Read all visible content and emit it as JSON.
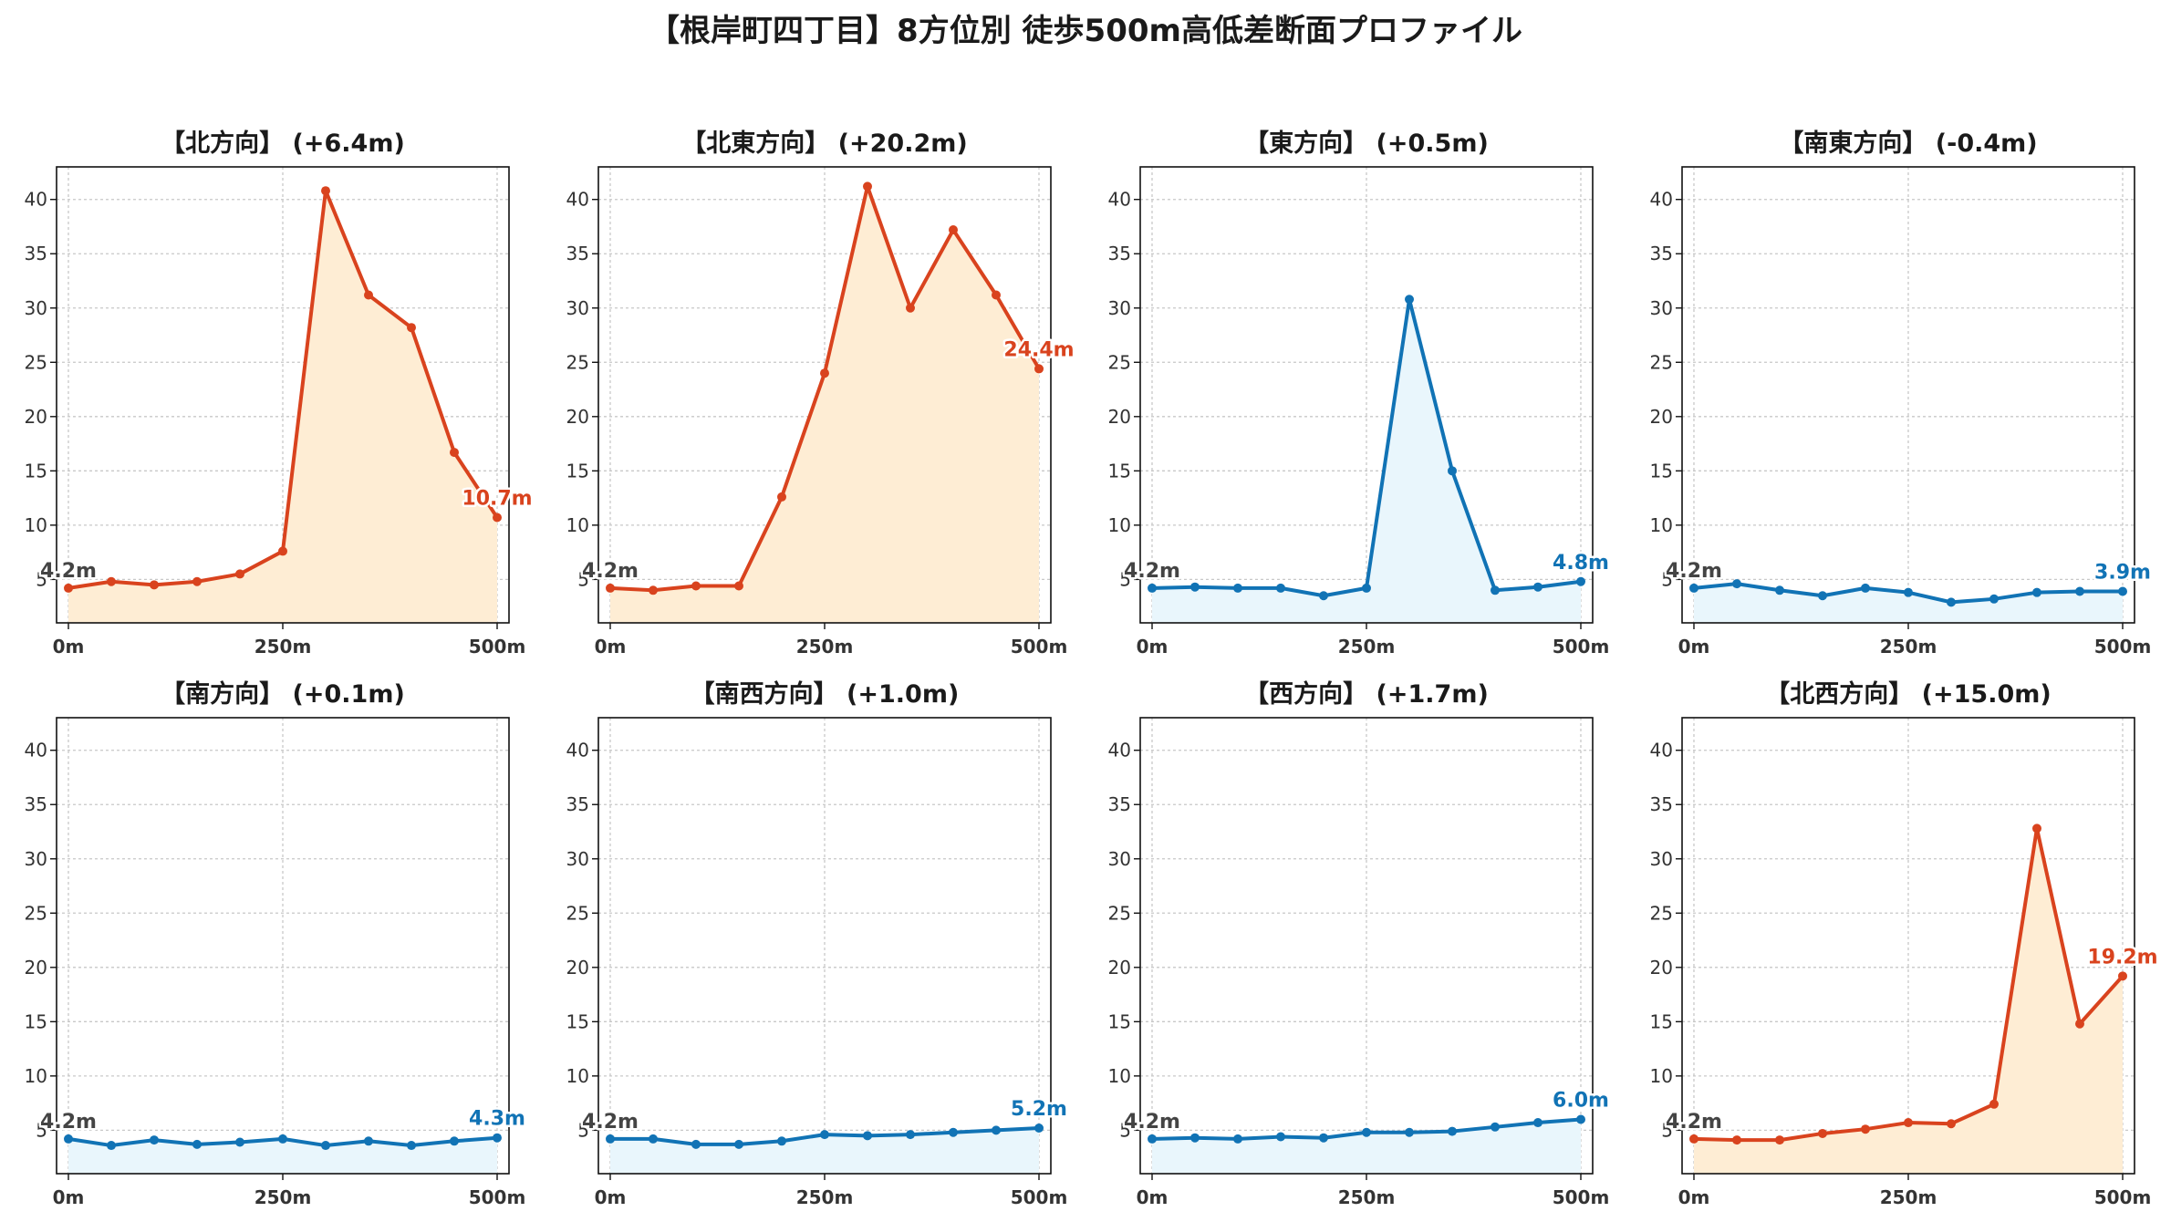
{
  "title": "【根岸町四丁目】8方位別 徒歩500m高低差断面プロファイル",
  "colors": {
    "up_line": "#d9431e",
    "up_fill": "#feedd4",
    "down_line": "#1173b5",
    "down_fill": "#e9f6fc",
    "start_label": "#444444",
    "grid": "#c8c8c8"
  },
  "chart_data": [
    {
      "type": "area",
      "title": "【北方向】 (+6.4m)",
      "trend": "up",
      "x": [
        0,
        50,
        100,
        150,
        200,
        250,
        300,
        350,
        400,
        450,
        500
      ],
      "y": [
        4.2,
        4.8,
        4.5,
        4.8,
        5.5,
        7.6,
        40.8,
        31.2,
        28.2,
        16.7,
        10.7
      ],
      "x_ticks": [
        "0m",
        "250m",
        "500m"
      ],
      "y_ticks": [
        5,
        10,
        15,
        20,
        25,
        30,
        35,
        40
      ],
      "ylim": [
        1,
        43
      ],
      "start_label": "4.2m",
      "end_label": "10.7m",
      "grid": true
    },
    {
      "type": "area",
      "title": "【北東方向】 (+20.2m)",
      "trend": "up",
      "x": [
        0,
        50,
        100,
        150,
        200,
        250,
        300,
        350,
        400,
        450,
        500
      ],
      "y": [
        4.2,
        4.0,
        4.4,
        4.4,
        12.6,
        24.0,
        41.2,
        30.0,
        37.2,
        31.2,
        24.4
      ],
      "x_ticks": [
        "0m",
        "250m",
        "500m"
      ],
      "y_ticks": [
        5,
        10,
        15,
        20,
        25,
        30,
        35,
        40
      ],
      "ylim": [
        1,
        43
      ],
      "start_label": "4.2m",
      "end_label": "24.4m",
      "grid": true
    },
    {
      "type": "area",
      "title": "【東方向】 (+0.5m)",
      "trend": "down",
      "x": [
        0,
        50,
        100,
        150,
        200,
        250,
        300,
        350,
        400,
        450,
        500
      ],
      "y": [
        4.2,
        4.3,
        4.2,
        4.2,
        3.5,
        4.2,
        30.8,
        15.0,
        4.0,
        4.3,
        4.8
      ],
      "x_ticks": [
        "0m",
        "250m",
        "500m"
      ],
      "y_ticks": [
        5,
        10,
        15,
        20,
        25,
        30,
        35,
        40
      ],
      "ylim": [
        1,
        43
      ],
      "start_label": "4.2m",
      "end_label": "4.8m",
      "grid": true
    },
    {
      "type": "area",
      "title": "【南東方向】 (-0.4m)",
      "trend": "down",
      "x": [
        0,
        50,
        100,
        150,
        200,
        250,
        300,
        350,
        400,
        450,
        500
      ],
      "y": [
        4.2,
        4.6,
        4.0,
        3.5,
        4.2,
        3.8,
        2.9,
        3.2,
        3.8,
        3.9,
        3.9
      ],
      "x_ticks": [
        "0m",
        "250m",
        "500m"
      ],
      "y_ticks": [
        5,
        10,
        15,
        20,
        25,
        30,
        35,
        40
      ],
      "ylim": [
        1,
        43
      ],
      "start_label": "4.2m",
      "end_label": "3.9m",
      "grid": true
    },
    {
      "type": "area",
      "title": "【南方向】 (+0.1m)",
      "trend": "down",
      "x": [
        0,
        50,
        100,
        150,
        200,
        250,
        300,
        350,
        400,
        450,
        500
      ],
      "y": [
        4.2,
        3.6,
        4.1,
        3.7,
        3.9,
        4.2,
        3.6,
        4.0,
        3.6,
        4.0,
        4.3
      ],
      "x_ticks": [
        "0m",
        "250m",
        "500m"
      ],
      "y_ticks": [
        5,
        10,
        15,
        20,
        25,
        30,
        35,
        40
      ],
      "ylim": [
        1,
        43
      ],
      "start_label": "4.2m",
      "end_label": "4.3m",
      "grid": true
    },
    {
      "type": "area",
      "title": "【南西方向】 (+1.0m)",
      "trend": "down",
      "x": [
        0,
        50,
        100,
        150,
        200,
        250,
        300,
        350,
        400,
        450,
        500
      ],
      "y": [
        4.2,
        4.2,
        3.7,
        3.7,
        4.0,
        4.6,
        4.5,
        4.6,
        4.8,
        5.0,
        5.2
      ],
      "x_ticks": [
        "0m",
        "250m",
        "500m"
      ],
      "y_ticks": [
        5,
        10,
        15,
        20,
        25,
        30,
        35,
        40
      ],
      "ylim": [
        1,
        43
      ],
      "start_label": "4.2m",
      "end_label": "5.2m",
      "grid": true
    },
    {
      "type": "area",
      "title": "【西方向】 (+1.7m)",
      "trend": "down",
      "x": [
        0,
        50,
        100,
        150,
        200,
        250,
        300,
        350,
        400,
        450,
        500
      ],
      "y": [
        4.2,
        4.3,
        4.2,
        4.4,
        4.3,
        4.8,
        4.8,
        4.9,
        5.3,
        5.7,
        6.0
      ],
      "x_ticks": [
        "0m",
        "250m",
        "500m"
      ],
      "y_ticks": [
        5,
        10,
        15,
        20,
        25,
        30,
        35,
        40
      ],
      "ylim": [
        1,
        43
      ],
      "start_label": "4.2m",
      "end_label": "6.0m",
      "grid": true
    },
    {
      "type": "area",
      "title": "【北西方向】 (+15.0m)",
      "trend": "up",
      "x": [
        0,
        50,
        100,
        150,
        200,
        250,
        300,
        350,
        400,
        450,
        500
      ],
      "y": [
        4.2,
        4.1,
        4.1,
        4.7,
        5.1,
        5.7,
        5.6,
        7.4,
        32.8,
        14.8,
        19.2
      ],
      "x_ticks": [
        "0m",
        "250m",
        "500m"
      ],
      "y_ticks": [
        5,
        10,
        15,
        20,
        25,
        30,
        35,
        40
      ],
      "ylim": [
        1,
        43
      ],
      "start_label": "4.2m",
      "end_label": "19.2m",
      "grid": true
    }
  ]
}
